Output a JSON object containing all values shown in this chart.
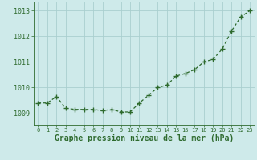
{
  "x": [
    0,
    1,
    2,
    3,
    4,
    5,
    6,
    7,
    8,
    9,
    10,
    11,
    12,
    13,
    14,
    15,
    16,
    17,
    18,
    19,
    20,
    21,
    22,
    23
  ],
  "y": [
    1009.4,
    1009.4,
    1009.65,
    1009.2,
    1009.15,
    1009.15,
    1009.15,
    1009.1,
    1009.15,
    1009.05,
    1009.05,
    1009.4,
    1009.7,
    1010.0,
    1010.1,
    1010.45,
    1010.55,
    1010.7,
    1011.0,
    1011.1,
    1011.5,
    1012.2,
    1012.75,
    1013.0
  ],
  "line_color": "#2d6a2d",
  "marker": "+",
  "marker_size": 4,
  "marker_linewidth": 1.0,
  "background_color": "#ceeaea",
  "grid_color": "#aacfcf",
  "xlabel": "Graphe pression niveau de la mer (hPa)",
  "xlabel_fontsize": 7,
  "ylabel_ticks": [
    1009,
    1010,
    1011,
    1012,
    1013
  ],
  "xlim": [
    -0.5,
    23.5
  ],
  "ylim": [
    1008.55,
    1013.35
  ],
  "x_tick_fontsize": 5,
  "y_tick_fontsize": 6,
  "axis_color": "#2d6a2d",
  "linewidth": 0.9,
  "line_dash": [
    3,
    2
  ]
}
